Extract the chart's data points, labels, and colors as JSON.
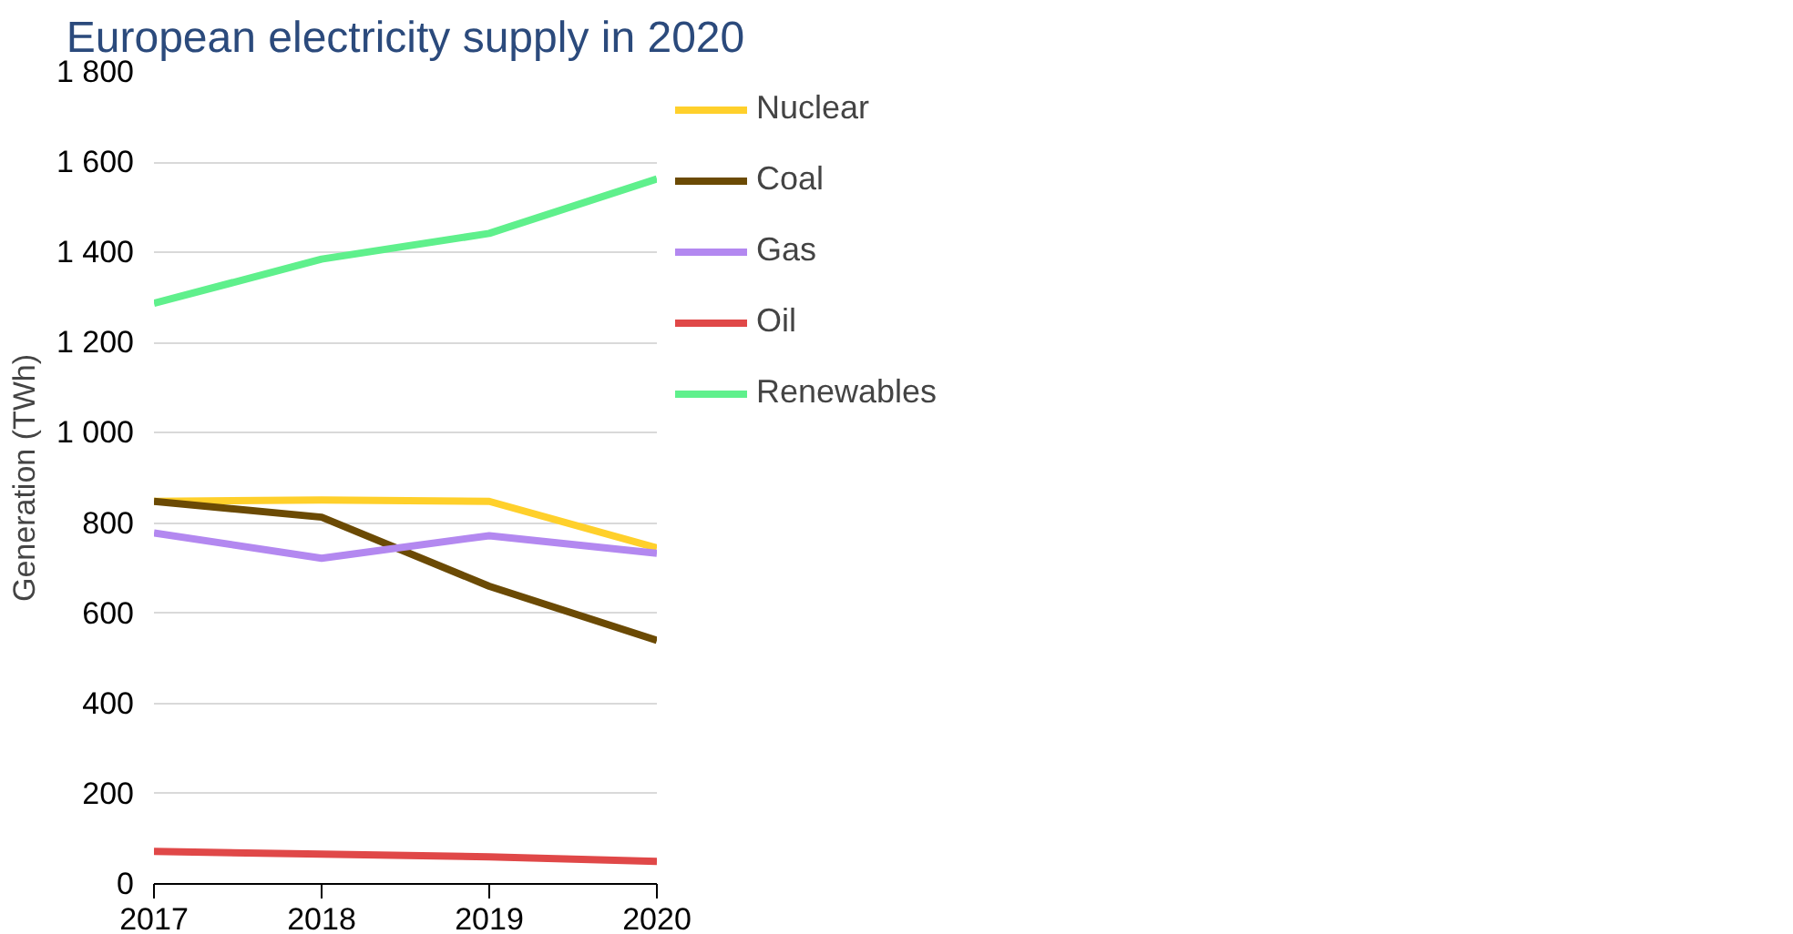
{
  "chart_data": {
    "type": "line",
    "title": "European electricity supply in 2020",
    "ylabel": "Generation (TWh)",
    "x": [
      2017,
      2018,
      2019,
      2020
    ],
    "series": [
      {
        "name": "Nuclear",
        "color": "#ffd02b",
        "values": [
          848,
          851,
          848,
          745
        ]
      },
      {
        "name": "Coal",
        "color": "#6b4a04",
        "values": [
          848,
          813,
          660,
          540
        ]
      },
      {
        "name": "Gas",
        "color": "#b388f0",
        "values": [
          778,
          722,
          772,
          733
        ]
      },
      {
        "name": "Oil",
        "color": "#e04848",
        "values": [
          72,
          66,
          60,
          50
        ]
      },
      {
        "name": "Renewables",
        "color": "#5ff08c",
        "values": [
          1287,
          1385,
          1442,
          1563
        ]
      }
    ],
    "xlim": [
      2017,
      2020
    ],
    "xticks": [
      2017,
      2018,
      2019,
      2020
    ],
    "ylim": [
      0,
      1800
    ],
    "yticks": [
      0,
      200,
      400,
      600,
      800,
      {
        "value": 1000,
        "label": "1 000"
      },
      {
        "value": 1200,
        "label": "1 200"
      },
      {
        "value": 1400,
        "label": "1 400"
      },
      {
        "value": 1600,
        "label": "1 600"
      },
      {
        "value": 1800,
        "label": "1 800"
      }
    ],
    "grid": "y",
    "legend": "right",
    "marker": "none",
    "line_style": "solid"
  }
}
